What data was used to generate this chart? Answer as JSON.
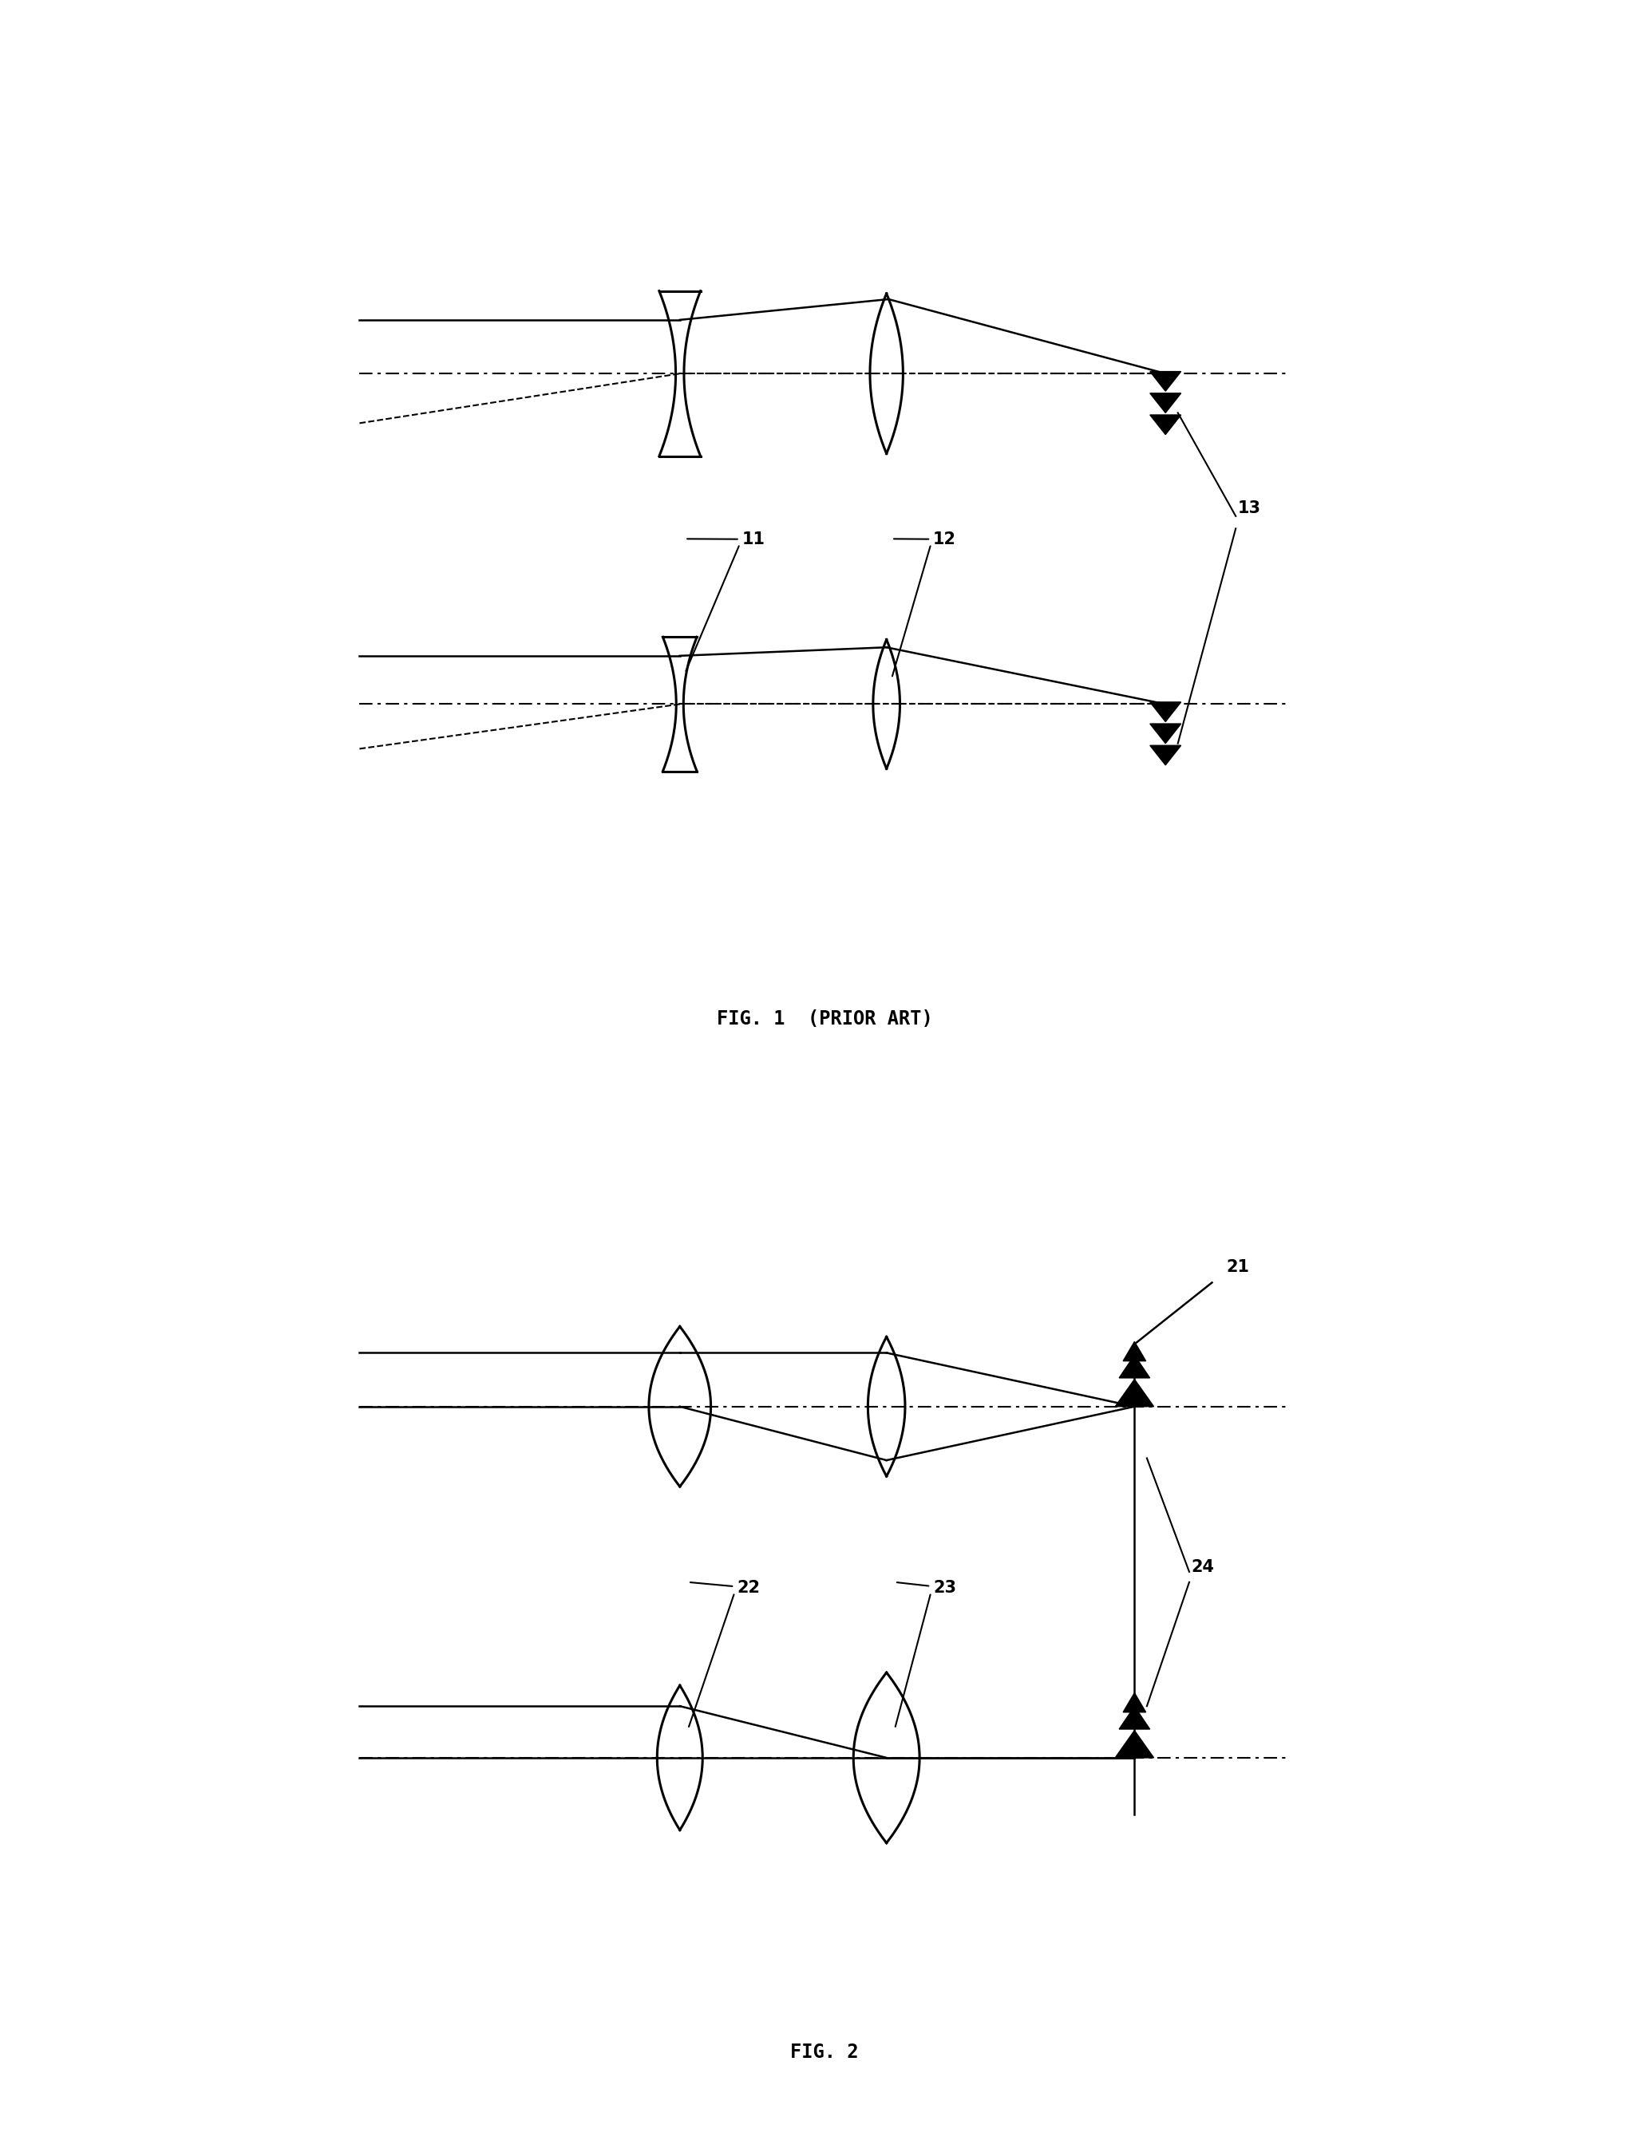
{
  "fig_width": 20.66,
  "fig_height": 26.97,
  "background_color": "#ffffff",
  "line_color": "#000000",
  "fig1_title": "FIG. 1  (PRIOR ART)",
  "fig2_title": "FIG. 2",
  "label_11": "11",
  "label_12": "12",
  "label_13": "13",
  "label_21": "21",
  "label_22": "22",
  "label_23": "23",
  "label_24": "24",
  "lw_main": 2.2,
  "lw_ray": 1.8,
  "lw_dash": 1.5,
  "lw_axis": 1.5
}
